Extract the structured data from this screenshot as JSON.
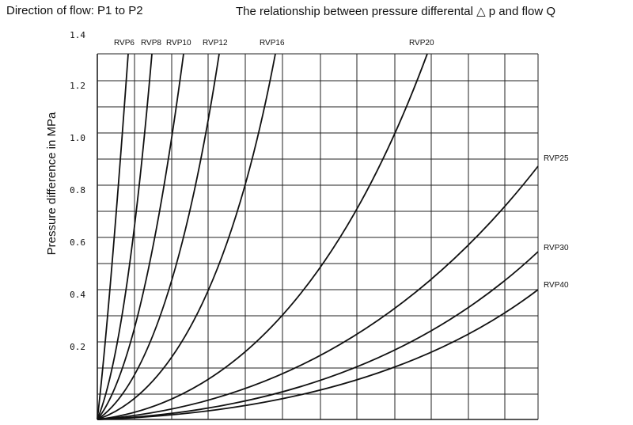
{
  "header": {
    "left": "Direction of flow: P1 to P2",
    "right": "The relationship between pressure differental △ p and flow Q"
  },
  "chart_data": {
    "type": "line",
    "title": "The relationship between pressure differental △ p and flow Q",
    "ylabel": "Pressure difference in MPa",
    "xlabel": "",
    "ylim": [
      0,
      1.4
    ],
    "xlim": [
      0,
      12
    ],
    "yticks": [
      "1.4",
      "1.2",
      "1.0",
      "0.8",
      "0.6",
      "0.4",
      "0.2"
    ],
    "grid": true,
    "series": [
      {
        "name": "RVP6",
        "x": [
          0,
          1.0
        ],
        "y": [
          0,
          1.4
        ]
      },
      {
        "name": "RVP8",
        "x": [
          0,
          1.5
        ],
        "y": [
          0,
          1.4
        ]
      },
      {
        "name": "RVP10",
        "x": [
          0,
          2.25
        ],
        "y": [
          0,
          1.4
        ]
      },
      {
        "name": "RVP12",
        "x": [
          0,
          3.2
        ],
        "y": [
          0,
          1.4
        ]
      },
      {
        "name": "RVP16",
        "x": [
          0,
          4.9
        ],
        "y": [
          0,
          1.4
        ]
      },
      {
        "name": "RVP20",
        "x": [
          0,
          8.9
        ],
        "y": [
          0,
          1.4
        ]
      },
      {
        "name": "RVP25",
        "x": [
          0,
          12
        ],
        "y": [
          0,
          0.88
        ]
      },
      {
        "name": "RVP30",
        "x": [
          0,
          12
        ],
        "y": [
          0,
          0.54
        ]
      },
      {
        "name": "RVP40",
        "x": [
          0,
          12
        ],
        "y": [
          0,
          0.4
        ]
      }
    ]
  }
}
